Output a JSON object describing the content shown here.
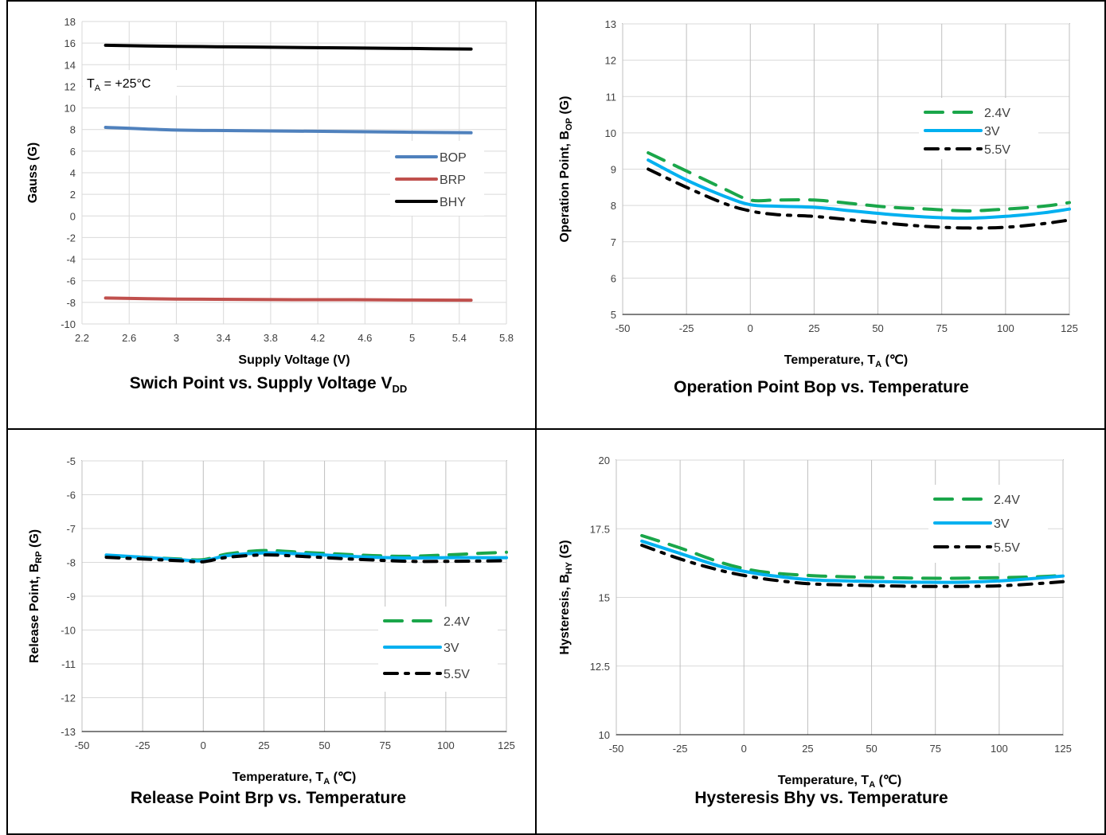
{
  "chart_data": [
    {
      "id": "vdd",
      "type": "line",
      "caption_main": "Swich Point vs. Supply Voltage V",
      "caption_sub": "DD",
      "xlabel": "Supply Voltage (V)",
      "ylabel": "Gauss (G)",
      "annotation_main": "T",
      "annotation_sub": "A",
      "annotation_rest": " = +25°C",
      "xlim": [
        2.2,
        5.8
      ],
      "ylim": [
        -10,
        18
      ],
      "xticks": [
        "2.2",
        "2.6",
        "3",
        "3.4",
        "3.8",
        "4.2",
        "4.6",
        "5",
        "5.4",
        "5.8"
      ],
      "yticks": [
        "-10",
        "-8",
        "-6",
        "-4",
        "-2",
        "0",
        "2",
        "4",
        "6",
        "8",
        "10",
        "12",
        "14",
        "16",
        "18"
      ],
      "grid": true,
      "legend_position": "center-right",
      "series": [
        {
          "name": "BOP",
          "color": "#4f81bd",
          "style": "solid",
          "x": [
            2.4,
            3.0,
            3.5,
            4.0,
            4.5,
            5.0,
            5.5
          ],
          "y": [
            8.2,
            7.95,
            7.9,
            7.85,
            7.8,
            7.75,
            7.7
          ]
        },
        {
          "name": "BRP",
          "color": "#c0504d",
          "style": "solid",
          "x": [
            2.4,
            3.0,
            3.5,
            4.0,
            4.5,
            5.0,
            5.5
          ],
          "y": [
            -7.6,
            -7.7,
            -7.72,
            -7.75,
            -7.75,
            -7.78,
            -7.8
          ]
        },
        {
          "name": "BHY",
          "color": "#000000",
          "style": "solid",
          "x": [
            2.4,
            3.0,
            3.5,
            4.0,
            4.5,
            5.0,
            5.5
          ],
          "y": [
            15.8,
            15.7,
            15.65,
            15.6,
            15.55,
            15.5,
            15.45
          ]
        }
      ]
    },
    {
      "id": "bop",
      "type": "line",
      "caption_main": "Operation Point Bop vs. Temperature",
      "xlabel_main": "Temperature, T",
      "xlabel_sub": "A",
      "xlabel_rest": " (℃)",
      "ylabel_main": "Operation Point, B",
      "ylabel_sub": "OP",
      "ylabel_rest": " (G)",
      "xlim": [
        -50,
        125
      ],
      "ylim": [
        5,
        13
      ],
      "xticks": [
        "-50",
        "-25",
        "0",
        "25",
        "50",
        "75",
        "100",
        "125"
      ],
      "yticks": [
        "5",
        "6",
        "7",
        "8",
        "9",
        "10",
        "11",
        "12",
        "13"
      ],
      "grid": true,
      "legend_position": "top-right",
      "series": [
        {
          "name": "2.4V",
          "color": "#1aa64a",
          "style": "dash",
          "x": [
            -40,
            -25,
            -10,
            0,
            10,
            25,
            40,
            55,
            70,
            85,
            100,
            115,
            125
          ],
          "y": [
            9.45,
            8.95,
            8.45,
            8.15,
            8.15,
            8.15,
            8.05,
            7.95,
            7.9,
            7.85,
            7.9,
            7.98,
            8.08
          ]
        },
        {
          "name": "3V",
          "color": "#00b0f0",
          "style": "solid",
          "x": [
            -40,
            -25,
            -10,
            0,
            10,
            25,
            40,
            55,
            70,
            85,
            100,
            115,
            125
          ],
          "y": [
            9.25,
            8.7,
            8.25,
            8.02,
            7.98,
            7.95,
            7.85,
            7.75,
            7.68,
            7.65,
            7.7,
            7.8,
            7.9
          ]
        },
        {
          "name": "5.5V",
          "color": "#000000",
          "style": "dashdot",
          "x": [
            -40,
            -25,
            -10,
            0,
            10,
            25,
            40,
            55,
            70,
            85,
            100,
            115,
            125
          ],
          "y": [
            9.0,
            8.5,
            8.05,
            7.85,
            7.75,
            7.7,
            7.6,
            7.5,
            7.42,
            7.38,
            7.4,
            7.5,
            7.6
          ]
        }
      ]
    },
    {
      "id": "brp",
      "type": "line",
      "caption_main": "Release Point Brp vs. Temperature",
      "xlabel_main": "Temperature, T",
      "xlabel_sub": "A",
      "xlabel_rest": " (℃)",
      "ylabel_main": "Release Point, B",
      "ylabel_sub": "RP",
      "ylabel_rest": " (G)",
      "xlim": [
        -50,
        125
      ],
      "ylim": [
        -13,
        -5
      ],
      "xticks": [
        "-50",
        "-25",
        "0",
        "25",
        "50",
        "75",
        "100",
        "125"
      ],
      "yticks": [
        "-13",
        "-12",
        "-11",
        "-10",
        "-9",
        "-8",
        "-7",
        "-6",
        "-5"
      ],
      "grid": true,
      "legend_position": "bottom-right",
      "series": [
        {
          "name": "2.4V",
          "color": "#1aa64a",
          "style": "dash",
          "x": [
            -40,
            -25,
            -10,
            0,
            10,
            25,
            40,
            55,
            70,
            85,
            100,
            115,
            125
          ],
          "y": [
            -7.8,
            -7.85,
            -7.9,
            -7.92,
            -7.75,
            -7.65,
            -7.7,
            -7.75,
            -7.8,
            -7.82,
            -7.78,
            -7.73,
            -7.7
          ]
        },
        {
          "name": "3V",
          "color": "#00b0f0",
          "style": "solid",
          "x": [
            -40,
            -25,
            -10,
            0,
            10,
            25,
            40,
            55,
            70,
            85,
            100,
            115,
            125
          ],
          "y": [
            -7.78,
            -7.85,
            -7.92,
            -7.95,
            -7.8,
            -7.72,
            -7.75,
            -7.8,
            -7.85,
            -7.87,
            -7.86,
            -7.86,
            -7.86
          ]
        },
        {
          "name": "5.5V",
          "color": "#000000",
          "style": "dashdot",
          "x": [
            -40,
            -25,
            -10,
            0,
            10,
            25,
            40,
            55,
            70,
            85,
            100,
            115,
            125
          ],
          "y": [
            -7.85,
            -7.9,
            -7.95,
            -7.98,
            -7.85,
            -7.78,
            -7.82,
            -7.88,
            -7.93,
            -7.97,
            -7.97,
            -7.96,
            -7.95
          ]
        }
      ]
    },
    {
      "id": "bhy",
      "type": "line",
      "caption_main": "Hysteresis Bhy vs. Temperature",
      "xlabel_main": "Temperature, T",
      "xlabel_sub": "A",
      "xlabel_rest": " (℃)",
      "ylabel_main": "Hysteresis,  B",
      "ylabel_sub": "HY",
      "ylabel_rest": " (G)",
      "xlim": [
        -50,
        125
      ],
      "ylim": [
        10,
        20
      ],
      "xticks": [
        "-50",
        "-25",
        "0",
        "25",
        "50",
        "75",
        "100",
        "125"
      ],
      "yticks": [
        "10",
        "12.5",
        "15",
        "17.5",
        "20"
      ],
      "grid": true,
      "legend_position": "top-right",
      "series": [
        {
          "name": "2.4V",
          "color": "#1aa64a",
          "style": "dash",
          "x": [
            -40,
            -25,
            -10,
            0,
            10,
            25,
            40,
            55,
            70,
            85,
            100,
            115,
            125
          ],
          "y": [
            17.25,
            16.8,
            16.3,
            16.05,
            15.9,
            15.8,
            15.75,
            15.72,
            15.7,
            15.7,
            15.72,
            15.75,
            15.8
          ]
        },
        {
          "name": "3V",
          "color": "#00b0f0",
          "style": "solid",
          "x": [
            -40,
            -25,
            -10,
            0,
            10,
            25,
            40,
            55,
            70,
            85,
            100,
            115,
            125
          ],
          "y": [
            17.05,
            16.6,
            16.15,
            15.95,
            15.8,
            15.65,
            15.6,
            15.57,
            15.55,
            15.55,
            15.6,
            15.7,
            15.78
          ]
        },
        {
          "name": "5.5V",
          "color": "#000000",
          "style": "dashdot",
          "x": [
            -40,
            -25,
            -10,
            0,
            10,
            25,
            40,
            55,
            70,
            85,
            100,
            115,
            125
          ],
          "y": [
            16.9,
            16.4,
            16.0,
            15.8,
            15.65,
            15.5,
            15.45,
            15.42,
            15.4,
            15.4,
            15.42,
            15.5,
            15.57
          ]
        }
      ]
    }
  ]
}
